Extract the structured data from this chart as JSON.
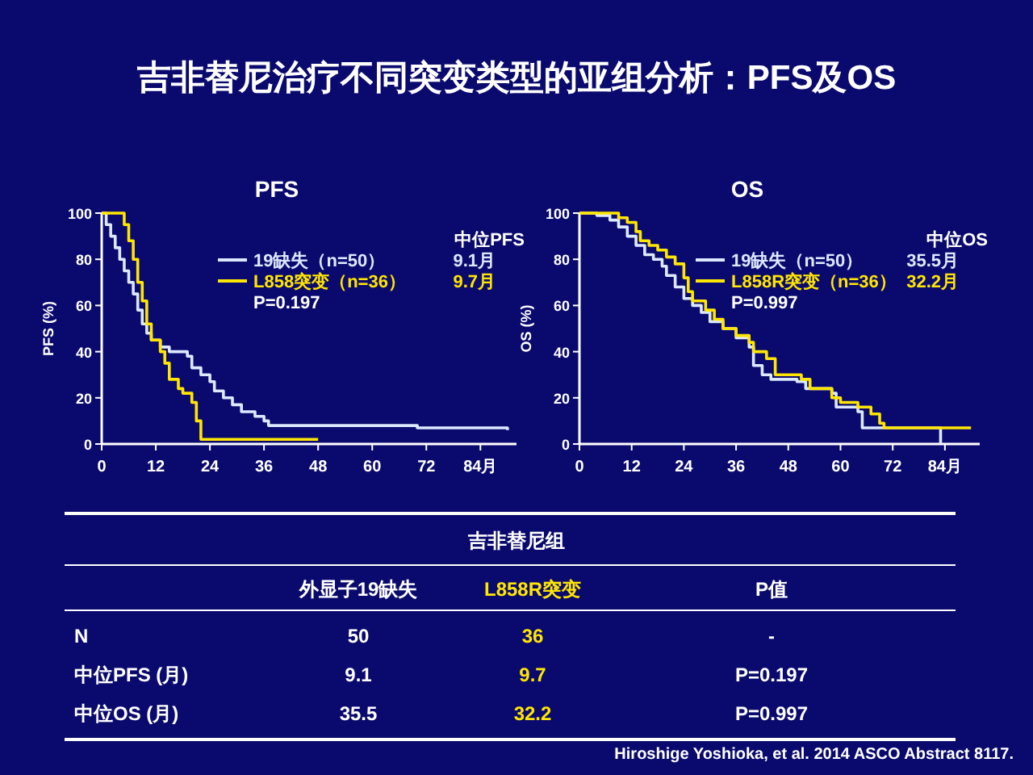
{
  "chart_data": [
    {
      "type": "other",
      "title": "吉非替尼治疗不同突变类型的亚组分析：PFS及OS"
    },
    {
      "type": "step",
      "title": "PFS",
      "ylabel": "PFS (%)",
      "xlim": [
        0,
        92
      ],
      "ylim": [
        0,
        100
      ],
      "xticks": [
        0,
        12,
        24,
        36,
        48,
        60,
        72,
        {
          "value": 84,
          "label": "84月"
        }
      ],
      "yticks": [
        0,
        20,
        40,
        60,
        80,
        100
      ],
      "legend": "top right",
      "grid": false,
      "annotations": [
        "中位PFS",
        "9.1月",
        "9.7月",
        "P=0.197"
      ],
      "series": [
        {
          "name": "19缺失（n=50）",
          "color": "#dce8ff",
          "x": [
            0,
            1,
            2,
            3,
            4,
            5,
            6,
            7,
            8,
            9,
            10,
            11,
            13,
            15,
            19,
            20,
            22,
            24,
            25,
            27,
            29,
            31,
            34,
            36,
            37,
            70,
            90
          ],
          "values": [
            100,
            95,
            90,
            85,
            80,
            75,
            70,
            65,
            58,
            52,
            48,
            45,
            42,
            40,
            38,
            33,
            30,
            27,
            23,
            20,
            17,
            14,
            12,
            10,
            8,
            7,
            6
          ]
        },
        {
          "name": "L858突变（n=36）",
          "color": "#ffe600",
          "x": [
            0,
            4,
            5,
            6,
            7,
            8,
            9,
            10,
            11,
            13,
            14,
            15,
            17,
            18,
            20,
            21,
            22,
            48
          ],
          "values": [
            100,
            100,
            95,
            88,
            80,
            70,
            62,
            52,
            45,
            40,
            35,
            28,
            24,
            22,
            18,
            10,
            2,
            2
          ]
        }
      ]
    },
    {
      "type": "step",
      "title": "OS",
      "ylabel": "OS (%)",
      "xlim": [
        0,
        92
      ],
      "ylim": [
        0,
        100
      ],
      "xticks": [
        0,
        12,
        24,
        36,
        48,
        60,
        72,
        {
          "value": 84,
          "label": "84月"
        }
      ],
      "yticks": [
        0,
        20,
        40,
        60,
        80,
        100
      ],
      "legend": "top right",
      "grid": false,
      "annotations": [
        "中位OS",
        "35.5月",
        "32.2月",
        "P=0.997"
      ],
      "series": [
        {
          "name": "19缺失（n=50）",
          "color": "#dce8ff",
          "x": [
            0,
            4,
            7,
            9,
            11,
            13,
            15,
            17,
            19,
            20,
            22,
            24,
            26,
            28,
            30,
            33,
            36,
            39,
            40,
            42,
            44,
            50,
            52,
            58,
            59,
            64,
            65,
            83
          ],
          "values": [
            100,
            99,
            97,
            94,
            90,
            86,
            82,
            80,
            77,
            73,
            68,
            63,
            60,
            57,
            53,
            50,
            46,
            42,
            34,
            30,
            28,
            27,
            24,
            22,
            16,
            14,
            7,
            0
          ]
        },
        {
          "name": "L858R突变（n=36）",
          "color": "#ffe600",
          "x": [
            0,
            7,
            9,
            11,
            13,
            14,
            16,
            18,
            20,
            22,
            24,
            25,
            26,
            29,
            31,
            33,
            36,
            39,
            40,
            43,
            45,
            51,
            53,
            58,
            60,
            64,
            67,
            69,
            70,
            90
          ],
          "values": [
            100,
            100,
            98,
            96,
            92,
            88,
            86,
            84,
            81,
            78,
            72,
            66,
            62,
            58,
            54,
            50,
            47,
            44,
            40,
            37,
            30,
            28,
            24,
            20,
            18,
            16,
            13,
            9,
            7,
            7
          ]
        }
      ]
    },
    {
      "type": "other",
      "title": "吉非替尼组",
      "categories": [
        "外显子19缺失",
        "L858R突变",
        "P值"
      ],
      "colors": [
        "#ffffff",
        "#ffe600",
        "#ffffff"
      ],
      "y_categories": [
        "N",
        "中位PFS (月)",
        "中位OS  (月)"
      ],
      "cell_labels": [
        [
          "50",
          "36",
          "-"
        ],
        [
          "9.1",
          "9.7",
          "P=0.197"
        ],
        [
          "35.5",
          "32.2",
          "P=0.997"
        ]
      ],
      "annotations": [
        "Hiroshige Yoshioka, et al. 2014 ASCO Abstract 8117."
      ]
    }
  ]
}
